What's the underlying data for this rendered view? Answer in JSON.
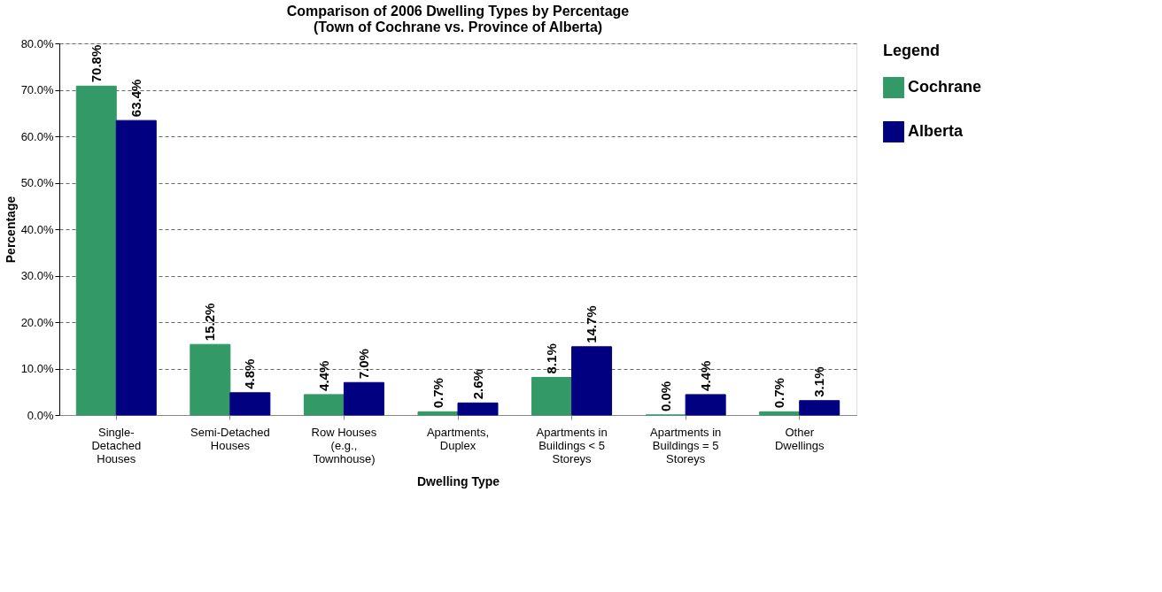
{
  "chart_data": {
    "type": "bar",
    "title": "Comparison of 2006 Dwelling Types by Percentage\n(Town of Cochrane vs. Province of  Alberta)",
    "xlabel": "Dwelling Type",
    "ylabel": "Percentage",
    "legend_title": "Legend",
    "categories": [
      "Single-Detached Houses",
      "Semi-Detached Houses",
      "Row Houses (e.g., Townhouse)",
      "Apartments, Duplex",
      "Apartments in Buildings < 5 Storeys",
      "Apartments in Buildings = 5 Storeys",
      "Other Dwellings"
    ],
    "series": [
      {
        "name": "Cochrane",
        "color": "#339966",
        "values": [
          70.8,
          15.2,
          4.4,
          0.7,
          8.1,
          0.0,
          0.7
        ],
        "value_labels": [
          "70.8%",
          "15.2%",
          "4.4%",
          "0.7%",
          "8.1%",
          "0.0%",
          "0.7%"
        ]
      },
      {
        "name": "Alberta",
        "color": "#000080",
        "values": [
          63.4,
          4.8,
          7.0,
          2.6,
          14.7,
          4.4,
          3.1
        ],
        "value_labels": [
          "63.4%",
          "4.8%",
          "7.0%",
          "2.6%",
          "14.7%",
          "4.4%",
          "3.1%"
        ]
      }
    ],
    "ylim": [
      0,
      80
    ],
    "yticks": [
      {
        "value": 0,
        "label": "0.0%"
      },
      {
        "value": 10,
        "label": "10.0%"
      },
      {
        "value": 20,
        "label": "20.0%"
      },
      {
        "value": 30,
        "label": "30.0%"
      },
      {
        "value": 40,
        "label": "40.0%"
      },
      {
        "value": 50,
        "label": "50.0%"
      },
      {
        "value": 60,
        "label": "60.0%"
      },
      {
        "value": 70,
        "label": "70.0%"
      },
      {
        "value": 80,
        "label": "80.0%"
      }
    ],
    "grid": "y",
    "legend": "right"
  }
}
